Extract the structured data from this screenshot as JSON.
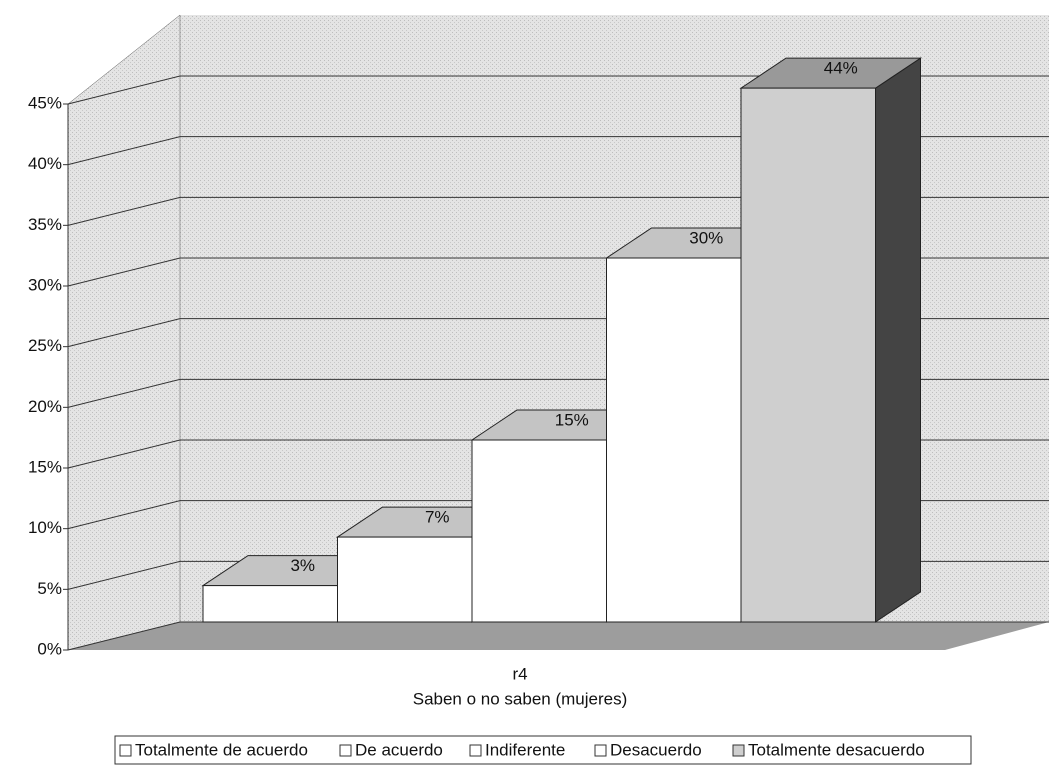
{
  "chart_data": {
    "type": "bar3d",
    "categories": [
      "r4"
    ],
    "x_label": "Saben o no saben (mujeres)",
    "series": [
      {
        "name": "Totalmente de acuerdo",
        "color": "#ffffff",
        "values": [
          3
        ],
        "value_labels": [
          "3%"
        ]
      },
      {
        "name": "De acuerdo",
        "color": "#ffffff",
        "values": [
          7
        ],
        "value_labels": [
          "7%"
        ]
      },
      {
        "name": "Indiferente",
        "color": "#ffffff",
        "values": [
          15
        ],
        "value_labels": [
          "15%"
        ]
      },
      {
        "name": "Desacuerdo",
        "color": "#ffffff",
        "values": [
          30
        ],
        "value_labels": [
          "30%"
        ]
      },
      {
        "name": "Totalmente desacuerdo",
        "color": "#cfcfcf",
        "values": [
          44
        ],
        "value_labels": [
          "44%"
        ]
      }
    ],
    "ylim": [
      0,
      45
    ],
    "yticks": [
      {
        "value": 0,
        "label": "0%"
      },
      {
        "value": 5,
        "label": "5%"
      },
      {
        "value": 10,
        "label": "10%"
      },
      {
        "value": 15,
        "label": "15%"
      },
      {
        "value": 20,
        "label": "20%"
      },
      {
        "value": 25,
        "label": "25%"
      },
      {
        "value": 30,
        "label": "30%"
      },
      {
        "value": 35,
        "label": "35%"
      },
      {
        "value": 40,
        "label": "40%"
      },
      {
        "value": 45,
        "label": "45%"
      }
    ],
    "grid": true
  }
}
